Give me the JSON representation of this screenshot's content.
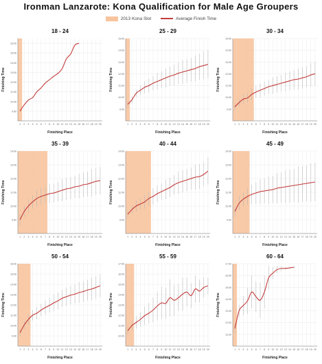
{
  "title": "Ironman Lanzarote: Kona Qualification for Male Age Groupers",
  "legend": {
    "slot_label": "2013 Kona Slot",
    "line_label": "Average Finish Time"
  },
  "colors": {
    "slot": "#f7c49e",
    "line": "#c33a3a",
    "errorbar": "#b8b8b8",
    "grid": "#ececec",
    "axis": "#999999"
  },
  "chart_data": [
    {
      "type": "line",
      "title": "18 - 24",
      "xlabel": "Finishing Place",
      "ylabel": "Finishing Time",
      "x": [
        1,
        2,
        3,
        4,
        5,
        6,
        7,
        8,
        9,
        10,
        11,
        12,
        13,
        14,
        15
      ],
      "values": [
        9.0,
        9.65,
        10.15,
        10.4,
        11.0,
        11.4,
        11.9,
        12.25,
        12.6,
        12.9,
        13.4,
        14.4,
        14.9,
        15.8,
        16.0
      ],
      "slots": 1,
      "xlim": [
        1,
        20
      ],
      "ylim": [
        8,
        16.5
      ],
      "yticks": [
        9,
        10,
        11,
        12,
        13,
        14,
        15,
        16
      ],
      "yticklabels": [
        "9:00",
        "10:00",
        "11:00",
        "12:00",
        "13:00",
        "14:00",
        "15:00",
        "16:00"
      ],
      "err": [
        0,
        0,
        0,
        0,
        0,
        0,
        0,
        0,
        0,
        0,
        0,
        0,
        0,
        0,
        0
      ]
    },
    {
      "type": "line",
      "title": "25 - 29",
      "xlabel": "Finishing Place",
      "ylabel": "Finishing Time",
      "x": [
        1,
        2,
        3,
        4,
        5,
        6,
        7,
        8,
        9,
        10,
        11,
        12,
        13,
        14,
        15,
        16,
        17,
        18,
        19,
        20
      ],
      "values": [
        9.4,
        9.8,
        10.35,
        10.6,
        10.85,
        11.0,
        11.2,
        11.35,
        11.5,
        11.65,
        11.8,
        11.9,
        12.05,
        12.15,
        12.25,
        12.35,
        12.45,
        12.6,
        12.7,
        12.8
      ],
      "slots": 1,
      "xlim": [
        1,
        20
      ],
      "ylim": [
        8,
        15
      ],
      "yticks": [
        9,
        10,
        11,
        12,
        13,
        14,
        15
      ],
      "yticklabels": [
        "9:00",
        "10:00",
        "11:00",
        "12:00",
        "13:00",
        "14:00",
        "15:00"
      ],
      "err": [
        0.3,
        0.3,
        0.3,
        0.4,
        0.5,
        0.6,
        0.6,
        0.7,
        0.7,
        0.8,
        0.8,
        0.9,
        0.9,
        1.0,
        1.0,
        1.0,
        1.1,
        1.1,
        1.2,
        1.2
      ]
    },
    {
      "type": "line",
      "title": "30 - 34",
      "xlabel": "Finishing Place",
      "ylabel": "Finishing Time",
      "x": [
        1,
        2,
        3,
        4,
        5,
        6,
        7,
        8,
        9,
        10,
        11,
        12,
        13,
        14,
        15,
        16,
        17,
        18,
        19,
        20
      ],
      "values": [
        9.2,
        9.55,
        9.85,
        9.95,
        10.25,
        10.45,
        10.6,
        10.75,
        10.9,
        11.0,
        11.1,
        11.2,
        11.3,
        11.4,
        11.5,
        11.55,
        11.65,
        11.75,
        11.9,
        12.0
      ],
      "slots": 5,
      "xlim": [
        1,
        20
      ],
      "ylim": [
        8,
        15
      ],
      "yticks": [
        9,
        10,
        11,
        12,
        13,
        14,
        15
      ],
      "yticklabels": [
        "9:00",
        "10:00",
        "11:00",
        "12:00",
        "13:00",
        "14:00",
        "15:00"
      ],
      "err": [
        0.3,
        0.3,
        0.4,
        0.4,
        0.5,
        0.5,
        0.6,
        0.6,
        0.6,
        0.7,
        0.7,
        0.7,
        0.8,
        0.8,
        0.8,
        0.9,
        0.9,
        0.9,
        1.0,
        1.0
      ]
    },
    {
      "type": "line",
      "title": "35 - 39",
      "xlabel": "Finishing Place",
      "ylabel": "Finishing Time",
      "x": [
        1,
        2,
        3,
        4,
        5,
        6,
        7,
        8,
        9,
        10,
        11,
        12,
        13,
        14,
        15,
        16,
        17,
        18,
        19,
        20
      ],
      "values": [
        9.0,
        9.6,
        10.0,
        10.3,
        10.55,
        10.7,
        10.8,
        10.9,
        10.95,
        11.05,
        11.15,
        11.25,
        11.3,
        11.4,
        11.45,
        11.55,
        11.6,
        11.7,
        11.8,
        11.85
      ],
      "slots": 7,
      "xlim": [
        1,
        20
      ],
      "ylim": [
        8,
        14
      ],
      "yticks": [
        9,
        10,
        11,
        12,
        13,
        14
      ],
      "yticklabels": [
        "9:00",
        "10:00",
        "11:00",
        "12:00",
        "13:00",
        "14:00"
      ],
      "err": [
        0.4,
        0.4,
        0.5,
        0.5,
        0.6,
        0.6,
        0.6,
        0.7,
        0.7,
        0.7,
        0.8,
        0.8,
        0.8,
        0.8,
        0.9,
        0.9,
        0.9,
        1.0,
        1.0,
        1.0
      ]
    },
    {
      "type": "line",
      "title": "40 - 44",
      "xlabel": "Finishing Place",
      "ylabel": "Finishing Time",
      "x": [
        1,
        2,
        3,
        4,
        5,
        6,
        7,
        8,
        9,
        10,
        11,
        12,
        13,
        14,
        15,
        16,
        17,
        18,
        19,
        20
      ],
      "values": [
        9.4,
        9.75,
        10.0,
        10.15,
        10.3,
        10.55,
        10.7,
        10.9,
        11.05,
        11.2,
        11.35,
        11.55,
        11.7,
        11.8,
        11.9,
        12.0,
        12.1,
        12.15,
        12.3,
        12.55
      ],
      "slots": 6,
      "xlim": [
        1,
        20
      ],
      "ylim": [
        8,
        14
      ],
      "yticks": [
        9,
        10,
        11,
        12,
        13,
        14
      ],
      "yticklabels": [
        "9:00",
        "10:00",
        "11:00",
        "12:00",
        "13:00",
        "14:00"
      ],
      "err": [
        0.3,
        0.3,
        0.4,
        0.4,
        0.5,
        0.5,
        0.6,
        0.6,
        0.6,
        0.7,
        0.7,
        0.7,
        0.8,
        0.8,
        0.8,
        0.8,
        0.9,
        0.9,
        0.9,
        1.0
      ]
    },
    {
      "type": "line",
      "title": "45 - 49",
      "xlabel": "Finishing Place",
      "ylabel": "Finishing Time",
      "x": [
        1,
        2,
        3,
        4,
        5,
        6,
        7,
        8,
        9,
        10,
        11,
        12,
        13,
        14,
        15,
        16,
        17,
        18,
        19,
        20
      ],
      "values": [
        9.6,
        10.2,
        10.5,
        10.7,
        10.85,
        10.95,
        11.05,
        11.1,
        11.15,
        11.2,
        11.3,
        11.35,
        11.4,
        11.45,
        11.5,
        11.55,
        11.6,
        11.65,
        11.7,
        11.75
      ],
      "slots": 4,
      "xlim": [
        1,
        20
      ],
      "ylim": [
        8,
        14
      ],
      "yticks": [
        9,
        10,
        11,
        12,
        13,
        14
      ],
      "yticklabels": [
        "9:00",
        "10:00",
        "11:00",
        "12:00",
        "13:00",
        "14:00"
      ],
      "err": [
        0.4,
        0.5,
        0.5,
        0.6,
        0.7,
        0.8,
        0.9,
        0.9,
        1.0,
        1.0,
        1.1,
        1.1,
        1.2,
        1.2,
        1.2,
        1.3,
        1.3,
        1.3,
        1.4,
        1.4
      ]
    },
    {
      "type": "line",
      "title": "50 - 54",
      "xlabel": "Finishing Place",
      "ylabel": "Finishing Time",
      "x": [
        1,
        2,
        3,
        4,
        5,
        6,
        7,
        8,
        9,
        10,
        11,
        12,
        13,
        14,
        15,
        16,
        17,
        18,
        19,
        20
      ],
      "values": [
        9.3,
        10.05,
        10.6,
        11.0,
        11.2,
        11.5,
        11.75,
        11.95,
        12.2,
        12.4,
        12.65,
        12.8,
        12.95,
        13.05,
        13.2,
        13.3,
        13.45,
        13.55,
        13.7,
        13.85
      ],
      "slots": 3,
      "xlim": [
        1,
        20
      ],
      "ylim": [
        8,
        16
      ],
      "yticks": [
        9,
        10,
        11,
        12,
        13,
        14,
        15,
        16
      ],
      "yticklabels": [
        "9:00",
        "10:00",
        "11:00",
        "12:00",
        "13:00",
        "14:00",
        "15:00",
        "16:00"
      ],
      "err": [
        0.3,
        0.4,
        0.5,
        0.5,
        0.6,
        0.6,
        0.7,
        0.7,
        0.8,
        0.8,
        0.8,
        0.9,
        0.9,
        0.9,
        1.0,
        1.0,
        1.0,
        1.1,
        1.1,
        1.1
      ]
    },
    {
      "type": "line",
      "title": "55 - 59",
      "xlabel": "Finishing Place",
      "ylabel": "Finishing Time",
      "x": [
        1,
        2,
        3,
        4,
        5,
        6,
        7,
        8,
        9,
        10,
        11,
        12,
        13,
        14,
        15,
        16,
        17,
        18,
        19,
        20
      ],
      "values": [
        10.5,
        11.0,
        11.3,
        11.6,
        11.95,
        12.2,
        12.5,
        12.9,
        13.2,
        13.15,
        13.7,
        13.45,
        13.7,
        14.05,
        14.25,
        13.9,
        14.55,
        14.35,
        14.7,
        14.85
      ],
      "slots": 2,
      "xlim": [
        1,
        20
      ],
      "ylim": [
        9,
        17
      ],
      "yticks": [
        10,
        11,
        12,
        13,
        14,
        15,
        16,
        17
      ],
      "yticklabels": [
        "10:00",
        "11:00",
        "12:00",
        "13:00",
        "14:00",
        "15:00",
        "16:00",
        "17:00"
      ],
      "err": [
        0.4,
        0.5,
        0.6,
        0.7,
        0.9,
        1.0,
        1.2,
        1.4,
        1.6,
        1.5,
        1.8,
        1.5,
        1.3,
        1.6,
        1.4,
        1.2,
        1.3,
        1.1,
        1.0,
        0.8
      ]
    },
    {
      "type": "line",
      "title": "60 - 64",
      "xlabel": "Finishing Place",
      "ylabel": "Finishing Time",
      "x": [
        1,
        2,
        3,
        4,
        5,
        6,
        7,
        8,
        9,
        10,
        11,
        12,
        13,
        14,
        15
      ],
      "values": [
        11.5,
        13.0,
        13.45,
        13.85,
        14.6,
        14.2,
        13.9,
        14.6,
        15.8,
        16.2,
        16.5,
        16.6,
        16.6,
        16.65,
        16.7
      ],
      "slots": 1,
      "xlim": [
        1,
        20
      ],
      "ylim": [
        10,
        17
      ],
      "yticks": [
        11,
        12,
        13,
        14,
        15,
        16,
        17
      ],
      "yticklabels": [
        "11:00",
        "12:00",
        "13:00",
        "14:00",
        "15:00",
        "16:00",
        "17:00"
      ],
      "err": [
        0.4,
        0.5,
        0.8,
        1.1,
        1.4,
        1.3,
        1.5,
        1.4,
        1.0,
        0.5,
        0.3,
        0.2,
        0.1,
        0.1,
        0.1
      ]
    }
  ]
}
